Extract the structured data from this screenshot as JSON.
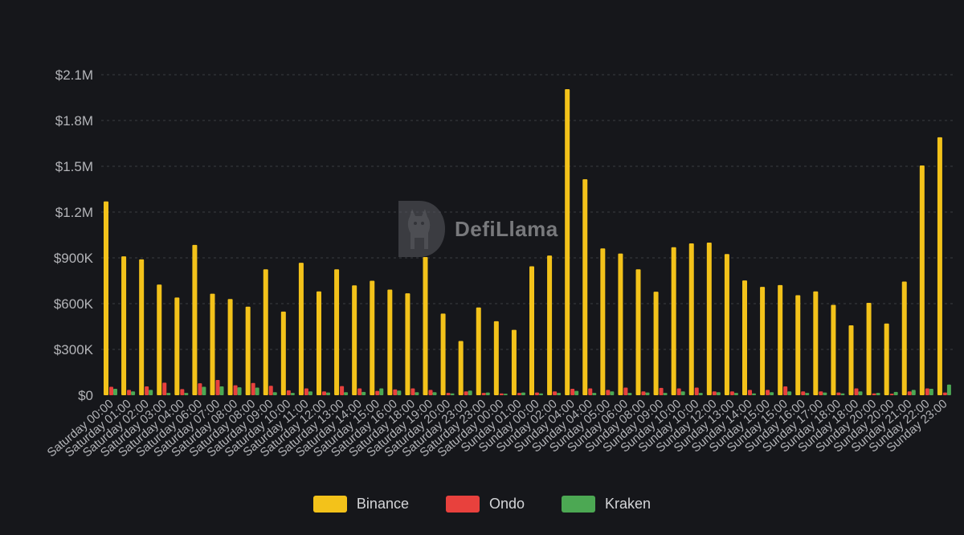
{
  "chart_data": {
    "type": "bar",
    "title": "",
    "xlabel": "",
    "ylabel": "",
    "ylim": [
      0,
      2100000
    ],
    "yticks": [
      {
        "value": 0,
        "label": "$0"
      },
      {
        "value": 300000,
        "label": "$300K"
      },
      {
        "value": 600000,
        "label": "$600K"
      },
      {
        "value": 900000,
        "label": "$900K"
      },
      {
        "value": 1200000,
        "label": "$1.2M"
      },
      {
        "value": 1500000,
        "label": "$1.5M"
      },
      {
        "value": 1800000,
        "label": "$1.8M"
      },
      {
        "value": 2100000,
        "label": "$2.1M"
      }
    ],
    "grid": true,
    "legend_position": "bottom-center",
    "categories": [
      "Saturday 00:00",
      "Saturday 01:00",
      "Saturday 02:00",
      "Saturday 03:00",
      "Saturday 04:00",
      "Saturday 06:00",
      "Saturday 07:00",
      "Saturday 08:00",
      "Saturday 08:00",
      "Saturday 09:00",
      "Saturday 10:00",
      "Saturday 11:00",
      "Saturday 12:00",
      "Saturday 13:00",
      "Saturday 14:00",
      "Saturday 15:00",
      "Saturday 16:00",
      "Saturday 18:00",
      "Saturday 19:00",
      "Saturday 20:00",
      "Saturday 23:00",
      "Saturday 23:00",
      "Saturday 00:00",
      "Sunday 01:00",
      "Sunday 00:00",
      "Sunday 02:00",
      "Sunday 04:00",
      "Sunday 04:00",
      "Sunday 05:00",
      "Sunday 06:00",
      "Sunday 08:00",
      "Sunday 09:00",
      "Sunday 10:00",
      "Sunday 10:00",
      "Sunday 12:00",
      "Sunday 13:00",
      "Sunday 14:00",
      "Sunday 15:00",
      "Sunday 15:00",
      "Sunday 16:00",
      "Sunday 17:00",
      "Sunday 18:00",
      "Sunday 18:00",
      "Sunday 20:00",
      "Sunday 20:00",
      "Sunday 21:00",
      "Sunday 22:00",
      "Sunday 23:00"
    ],
    "series": [
      {
        "name": "Binance",
        "color": "#f3c21a",
        "values": [
          1270000,
          910000,
          890000,
          725000,
          640000,
          985000,
          665000,
          630000,
          580000,
          825000,
          548000,
          868000,
          680000,
          825000,
          720000,
          750000,
          692000,
          668000,
          905000,
          535000,
          355000,
          575000,
          485000,
          428000,
          845000,
          915000,
          2005000,
          1415000,
          962000,
          928000,
          825000,
          678000,
          970000,
          995000,
          1000000,
          925000,
          752000,
          710000,
          722000,
          655000,
          680000,
          592000,
          458000,
          605000,
          470000,
          745000,
          1505000,
          1690000
        ]
      },
      {
        "name": "Ondo",
        "color": "#e8413d",
        "values": [
          55000,
          35000,
          58000,
          82000,
          40000,
          78000,
          100000,
          65000,
          80000,
          62000,
          32000,
          45000,
          25000,
          60000,
          45000,
          28000,
          38000,
          45000,
          35000,
          15000,
          25000,
          15000,
          12000,
          15000,
          18000,
          25000,
          42000,
          45000,
          35000,
          50000,
          25000,
          48000,
          45000,
          50000,
          25000,
          25000,
          35000,
          35000,
          58000,
          25000,
          25000,
          18000,
          45000,
          12000,
          10000,
          25000,
          45000,
          18000
        ]
      },
      {
        "name": "Kraken",
        "color": "#4ca853",
        "values": [
          42000,
          25000,
          35000,
          15000,
          15000,
          55000,
          58000,
          52000,
          50000,
          20000,
          15000,
          25000,
          18000,
          20000,
          22000,
          45000,
          30000,
          20000,
          20000,
          12000,
          30000,
          18000,
          10000,
          18000,
          12000,
          15000,
          28000,
          15000,
          25000,
          15000,
          18000,
          15000,
          25000,
          15000,
          20000,
          15000,
          12000,
          20000,
          25000,
          15000,
          18000,
          12000,
          25000,
          15000,
          22000,
          35000,
          42000,
          70000
        ]
      }
    ]
  },
  "watermark": {
    "text": "DefiLlama"
  }
}
